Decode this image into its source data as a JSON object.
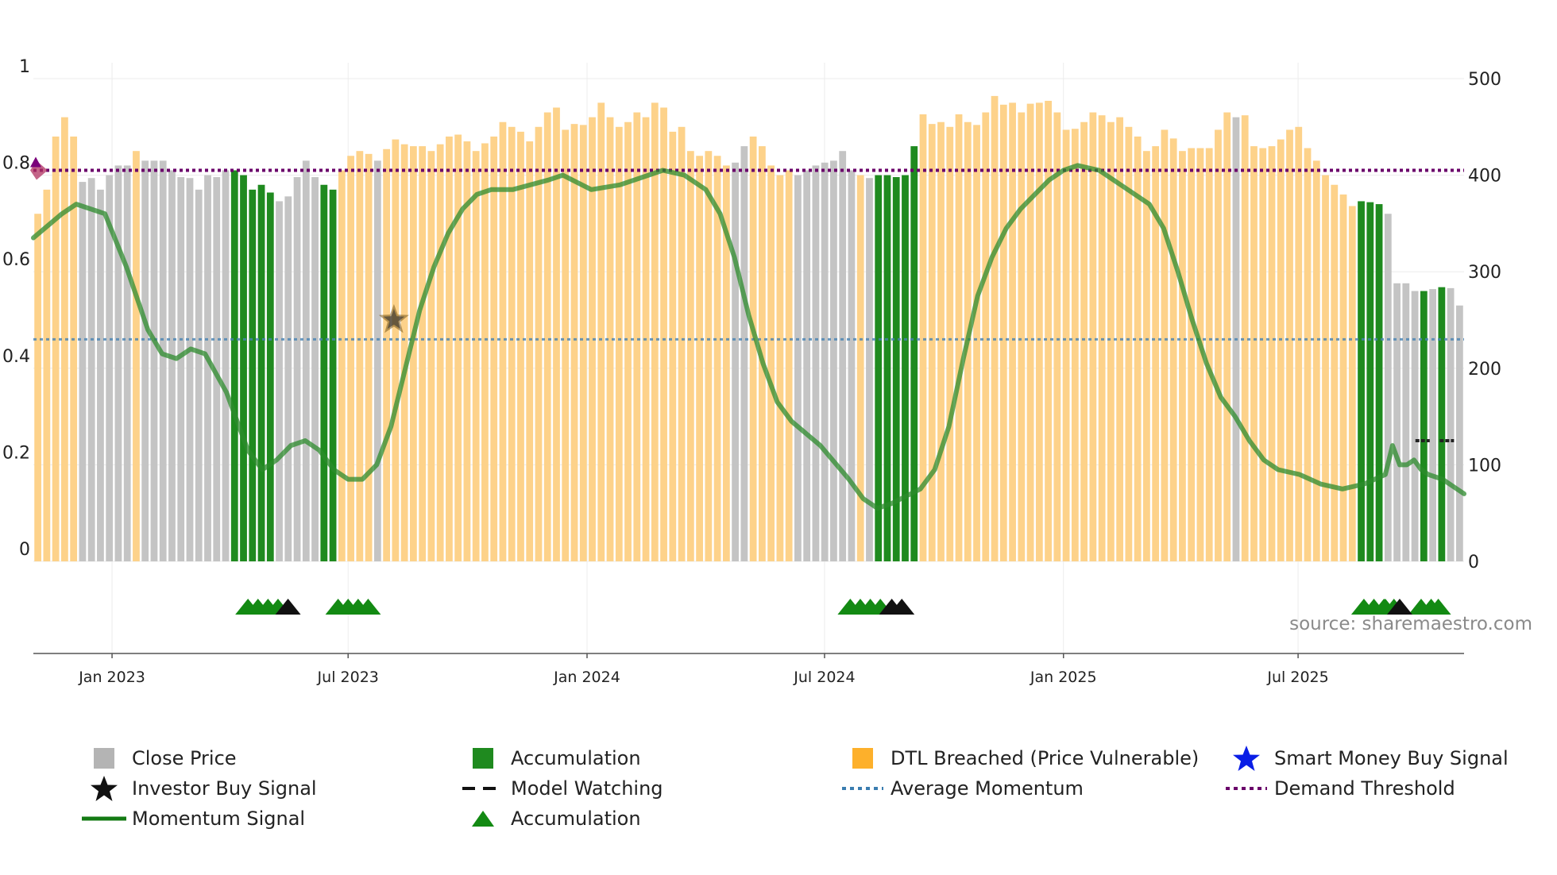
{
  "chart_data": {
    "type": "bar",
    "left_axis": {
      "min": 0,
      "max": 1,
      "ticks": [
        "0",
        "0.2",
        "0.4",
        "0.6",
        "0.8",
        "1"
      ]
    },
    "right_axis": {
      "min": 0,
      "max": 500,
      "ticks": [
        "0",
        "100",
        "200",
        "300",
        "400",
        "500"
      ]
    },
    "x_axis": {
      "ticks": [
        "Jan 2023",
        "Jul 2023",
        "Jan 2024",
        "Jul 2024",
        "Jan 2025",
        "Jul 2025"
      ]
    },
    "bar_categories": {
      "G": "Close Price",
      "A": "Accumulation",
      "Y": "DTL Breached (Price Vulnerable)"
    },
    "bar_values": [
      360,
      385,
      440,
      460,
      440,
      393,
      397,
      385,
      400,
      410,
      410,
      425,
      415,
      415,
      415,
      405,
      398,
      397,
      385,
      400,
      398,
      405,
      405,
      400,
      385,
      390,
      382,
      373,
      378,
      398,
      415,
      398,
      390,
      385,
      405,
      420,
      425,
      422,
      415,
      427,
      437,
      432,
      430,
      430,
      425,
      432,
      440,
      442,
      435,
      425,
      433,
      440,
      455,
      450,
      445,
      435,
      450,
      465,
      470,
      447,
      453,
      452,
      460,
      475,
      460,
      450,
      455,
      465,
      460,
      475,
      470,
      445,
      450,
      425,
      420,
      425,
      420,
      410,
      413,
      430,
      440,
      430,
      410,
      400,
      405,
      400,
      405,
      410,
      413,
      415,
      425,
      405,
      400,
      397,
      400,
      400,
      398,
      400,
      430,
      463,
      453,
      455,
      450,
      463,
      455,
      452,
      465,
      482,
      473,
      475,
      465,
      474,
      475,
      477,
      465,
      447,
      448,
      455,
      465,
      462,
      455,
      460,
      450,
      440,
      425,
      430,
      447,
      438,
      425,
      428,
      428,
      428,
      447,
      465,
      460,
      462,
      430,
      428,
      430,
      437,
      447,
      450,
      428,
      415,
      400,
      390,
      380,
      368,
      373,
      372,
      370,
      360,
      288,
      288,
      280,
      280,
      282,
      284,
      283,
      265
    ],
    "bar_states": "YYYYYGGGGGGYGGGGGGGGGGAAAAAGGGGGAAYYYYGYYYYYYYYYYYYYYYYYYYYYYYYYYYYYYYYYYYYYYYGGYYYYYGGGGGGGYGAAAAAYYYYYYYYYYYYYYYYYYYYYYYYYYYYYYYYYYYGYYYYYYYYYYYYYAAAGGGGAGAGGGGGGG",
    "momentum_signal": [
      [
        0,
        0.67
      ],
      [
        0.02,
        0.72
      ],
      [
        0.03,
        0.74
      ],
      [
        0.05,
        0.72
      ],
      [
        0.065,
        0.61
      ],
      [
        0.08,
        0.48
      ],
      [
        0.09,
        0.43
      ],
      [
        0.1,
        0.42
      ],
      [
        0.11,
        0.44
      ],
      [
        0.12,
        0.43
      ],
      [
        0.135,
        0.35
      ],
      [
        0.15,
        0.23
      ],
      [
        0.16,
        0.19
      ],
      [
        0.17,
        0.21
      ],
      [
        0.18,
        0.24
      ],
      [
        0.19,
        0.25
      ],
      [
        0.2,
        0.23
      ],
      [
        0.21,
        0.19
      ],
      [
        0.22,
        0.17
      ],
      [
        0.23,
        0.17
      ],
      [
        0.24,
        0.2
      ],
      [
        0.25,
        0.28
      ],
      [
        0.26,
        0.4
      ],
      [
        0.27,
        0.52
      ],
      [
        0.28,
        0.61
      ],
      [
        0.29,
        0.68
      ],
      [
        0.3,
        0.73
      ],
      [
        0.31,
        0.76
      ],
      [
        0.32,
        0.77
      ],
      [
        0.335,
        0.77
      ],
      [
        0.36,
        0.79
      ],
      [
        0.37,
        0.8
      ],
      [
        0.39,
        0.77
      ],
      [
        0.41,
        0.78
      ],
      [
        0.43,
        0.8
      ],
      [
        0.44,
        0.81
      ],
      [
        0.455,
        0.8
      ],
      [
        0.47,
        0.77
      ],
      [
        0.48,
        0.72
      ],
      [
        0.49,
        0.63
      ],
      [
        0.5,
        0.51
      ],
      [
        0.51,
        0.41
      ],
      [
        0.52,
        0.33
      ],
      [
        0.53,
        0.29
      ],
      [
        0.55,
        0.24
      ],
      [
        0.57,
        0.17
      ],
      [
        0.58,
        0.13
      ],
      [
        0.59,
        0.11
      ],
      [
        0.6,
        0.12
      ],
      [
        0.62,
        0.15
      ],
      [
        0.63,
        0.19
      ],
      [
        0.64,
        0.28
      ],
      [
        0.65,
        0.42
      ],
      [
        0.66,
        0.55
      ],
      [
        0.67,
        0.63
      ],
      [
        0.68,
        0.69
      ],
      [
        0.69,
        0.73
      ],
      [
        0.7,
        0.76
      ],
      [
        0.71,
        0.79
      ],
      [
        0.72,
        0.81
      ],
      [
        0.73,
        0.82
      ],
      [
        0.745,
        0.81
      ],
      [
        0.76,
        0.78
      ],
      [
        0.78,
        0.74
      ],
      [
        0.79,
        0.69
      ],
      [
        0.8,
        0.6
      ],
      [
        0.81,
        0.5
      ],
      [
        0.82,
        0.41
      ],
      [
        0.83,
        0.34
      ],
      [
        0.84,
        0.3
      ],
      [
        0.85,
        0.25
      ],
      [
        0.86,
        0.21
      ],
      [
        0.87,
        0.19
      ],
      [
        0.885,
        0.18
      ],
      [
        0.9,
        0.16
      ],
      [
        0.915,
        0.15
      ],
      [
        0.93,
        0.16
      ],
      [
        0.945,
        0.18
      ],
      [
        0.95,
        0.24
      ],
      [
        0.955,
        0.2
      ],
      [
        0.96,
        0.2
      ],
      [
        0.965,
        0.21
      ],
      [
        0.97,
        0.19
      ],
      [
        0.975,
        0.18
      ],
      [
        0.985,
        0.17
      ],
      [
        0.995,
        0.15
      ],
      [
        1,
        0.14
      ]
    ],
    "average_momentum": 0.46,
    "demand_threshold": 0.81,
    "model_watching": [
      [
        0.966,
        0.25
      ],
      [
        0.976,
        0.25
      ],
      [
        0.983,
        0.25
      ],
      [
        0.993,
        0.25
      ]
    ],
    "investor_buy_signal": [
      [
        0.252,
        0.5
      ]
    ],
    "accumulation_markers_green": [
      0.15,
      0.157,
      0.164,
      0.171,
      0.213,
      0.22,
      0.227,
      0.234,
      0.571,
      0.578,
      0.585,
      0.592,
      0.93,
      0.937,
      0.944,
      0.951,
      0.945,
      0.97,
      0.977,
      0.982
    ],
    "accumulation_markers_black": [
      0.178,
      0.6,
      0.607,
      0.955
    ],
    "source_text": "source: sharemaestro.com"
  },
  "legend": {
    "close_price": "Close Price",
    "accumulation_bar": "Accumulation",
    "dtl_breached": "DTL Breached (Price Vulnerable)",
    "smart_money": "Smart Money Buy Signal",
    "investor_buy": "Investor Buy Signal",
    "model_watching": "Model Watching",
    "average_momentum": "Average Momentum",
    "demand_threshold": "Demand Threshold",
    "momentum_signal": "Momentum Signal",
    "accumulation_marker": "Accumulation"
  },
  "colors": {
    "close_price": "#c4c4c4",
    "accumulation": "#1f8a1f",
    "dtl_breached": "#fdd28a",
    "momentum": "#2e8b2e",
    "average_momentum": "#4682b4",
    "demand_threshold": "#6a006a",
    "smart_money": "#0a1ee6",
    "marker_green": "#138a13",
    "marker_black": "#111111"
  }
}
